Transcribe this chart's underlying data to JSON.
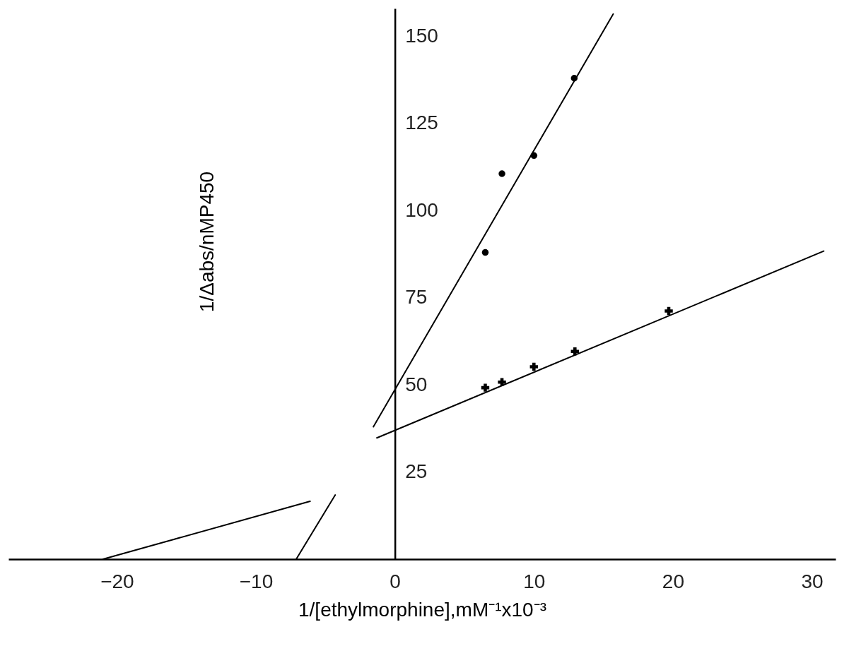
{
  "chart_data": {
    "type": "scatter",
    "xlabel": "1/[ethylmorphine],mM⁻¹x10⁻³",
    "ylabel": "1/Δabs/nMP450",
    "xlim": [
      -27.8,
      31.7
    ],
    "ylim": [
      0,
      158
    ],
    "xticks": [
      -20,
      -10,
      0,
      10,
      20,
      30
    ],
    "yticks": [
      25,
      50,
      75,
      100,
      125,
      150
    ],
    "series": [
      {
        "marker": "circle",
        "color": "#000000",
        "x": [
          6.5,
          7.7,
          10,
          12.9
        ],
        "values": [
          88,
          110.6,
          115.8,
          138
        ]
      },
      {
        "marker": "cross",
        "color": "#000000",
        "x": [
          6.5,
          7.7,
          10,
          12.95,
          19.7
        ],
        "values": [
          49.2,
          50.8,
          55.2,
          59.6,
          71.2
        ]
      },
      {
        "type": "line",
        "marker": "none",
        "color": "#000000",
        "x": [
          -7.1,
          -4.3,
          -3,
          -1.55,
          15.7
        ],
        "values": [
          0,
          18.4,
          null,
          38,
          156.4
        ]
      },
      {
        "type": "line",
        "marker": "none",
        "color": "#000000",
        "x": [
          -21,
          -6.1,
          -3.5,
          -1.3,
          30.85
        ],
        "values": [
          0,
          16.6,
          null,
          34.8,
          88.4
        ]
      }
    ]
  }
}
